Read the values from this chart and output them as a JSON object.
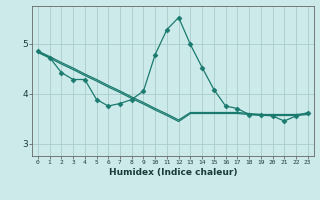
{
  "xlabel": "Humidex (Indice chaleur)",
  "background_color": "#cdeaea",
  "line_color": "#1a7a6e",
  "grid_color": "#a8cccc",
  "x_values": [
    0,
    1,
    2,
    3,
    4,
    5,
    6,
    7,
    8,
    9,
    10,
    11,
    12,
    13,
    14,
    15,
    16,
    17,
    18,
    19,
    20,
    21,
    22,
    23
  ],
  "line_main": [
    4.85,
    4.72,
    4.42,
    4.28,
    4.28,
    3.88,
    3.75,
    3.8,
    3.88,
    4.05,
    4.78,
    5.28,
    5.52,
    4.98,
    4.52,
    4.08,
    3.75,
    3.7,
    3.58,
    3.58,
    3.55,
    3.45,
    3.55,
    3.62
  ],
  "line_upper": [
    4.85,
    4.74,
    4.62,
    4.51,
    4.39,
    4.28,
    4.16,
    4.05,
    3.93,
    3.82,
    3.7,
    3.59,
    3.47,
    3.62,
    3.62,
    3.62,
    3.62,
    3.62,
    3.6,
    3.58,
    3.58,
    3.58,
    3.58,
    3.6
  ],
  "line_lower": [
    4.82,
    4.71,
    4.59,
    4.48,
    4.36,
    4.25,
    4.13,
    4.02,
    3.9,
    3.79,
    3.67,
    3.56,
    3.44,
    3.6,
    3.6,
    3.6,
    3.6,
    3.6,
    3.58,
    3.56,
    3.56,
    3.56,
    3.56,
    3.58
  ],
  "ylim": [
    2.75,
    5.75
  ],
  "yticks": [
    3,
    4,
    5
  ],
  "xlim": [
    -0.5,
    23.5
  ],
  "figsize": [
    3.2,
    2.0
  ],
  "dpi": 100
}
